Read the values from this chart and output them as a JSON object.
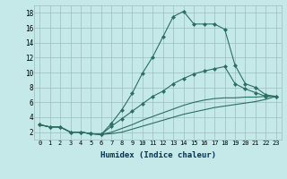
{
  "xlabel": "Humidex (Indice chaleur)",
  "bg_color": "#c5e8e8",
  "grid_color": "#9dbdbd",
  "line_color": "#2a7060",
  "xlim_min": -0.5,
  "xlim_max": 23.5,
  "ylim_min": 1.0,
  "ylim_max": 19.0,
  "xtick_vals": [
    0,
    1,
    2,
    3,
    4,
    5,
    6,
    7,
    8,
    9,
    10,
    11,
    12,
    13,
    14,
    15,
    16,
    17,
    18,
    19,
    20,
    21,
    22,
    23
  ],
  "ytick_vals": [
    2,
    4,
    6,
    8,
    10,
    12,
    14,
    16,
    18
  ],
  "curves": [
    {
      "x": [
        0,
        1,
        2,
        3,
        4,
        5,
        6,
        7,
        8,
        9,
        10,
        11,
        12,
        13,
        14,
        15,
        16,
        17,
        18,
        19,
        20,
        21,
        22,
        23
      ],
      "y": [
        3.0,
        2.7,
        2.7,
        2.0,
        2.0,
        1.8,
        1.7,
        3.2,
        5.0,
        7.2,
        9.9,
        12.1,
        14.8,
        17.5,
        18.2,
        16.5,
        16.5,
        16.5,
        15.8,
        11.0,
        8.5,
        8.0,
        7.0,
        6.8
      ],
      "marker": true
    },
    {
      "x": [
        0,
        1,
        2,
        3,
        4,
        5,
        6,
        7,
        8,
        9,
        10,
        11,
        12,
        13,
        14,
        15,
        16,
        17,
        18,
        19,
        20,
        21,
        22,
        23
      ],
      "y": [
        3.0,
        2.7,
        2.7,
        2.0,
        2.0,
        1.8,
        1.7,
        2.8,
        3.8,
        4.8,
        5.8,
        6.8,
        7.5,
        8.5,
        9.2,
        9.8,
        10.2,
        10.5,
        10.8,
        8.5,
        7.8,
        7.3,
        6.8,
        6.8
      ],
      "marker": true
    },
    {
      "x": [
        0,
        1,
        2,
        3,
        4,
        5,
        6,
        7,
        8,
        9,
        10,
        11,
        12,
        13,
        14,
        15,
        16,
        17,
        18,
        19,
        20,
        21,
        22,
        23
      ],
      "y": [
        3.0,
        2.7,
        2.7,
        2.0,
        2.0,
        1.8,
        1.7,
        2.0,
        2.5,
        3.0,
        3.6,
        4.1,
        4.6,
        5.1,
        5.6,
        6.0,
        6.3,
        6.5,
        6.6,
        6.6,
        6.7,
        6.7,
        6.8,
        6.8
      ],
      "marker": false
    },
    {
      "x": [
        0,
        1,
        2,
        3,
        4,
        5,
        6,
        7,
        8,
        9,
        10,
        11,
        12,
        13,
        14,
        15,
        16,
        17,
        18,
        19,
        20,
        21,
        22,
        23
      ],
      "y": [
        3.0,
        2.7,
        2.7,
        2.0,
        2.0,
        1.8,
        1.7,
        1.8,
        2.0,
        2.4,
        2.8,
        3.2,
        3.6,
        4.0,
        4.4,
        4.7,
        5.0,
        5.3,
        5.5,
        5.7,
        5.9,
        6.1,
        6.4,
        6.8
      ],
      "marker": false
    }
  ],
  "xlabel_fontsize": 6.5,
  "tick_fontsize_x": 5.0,
  "tick_fontsize_y": 5.5
}
